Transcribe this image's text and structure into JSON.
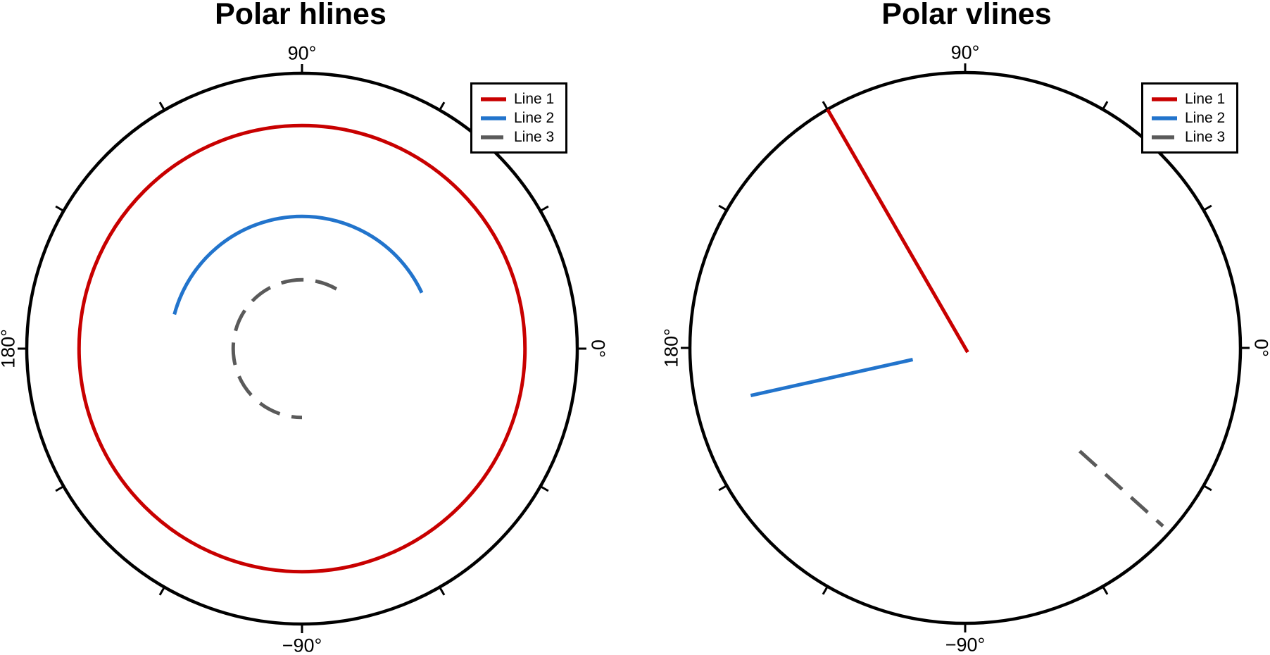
{
  "figure": {
    "background_color": "#ffffff",
    "text_color": "#000000",
    "axis_color": "#000000"
  },
  "chart_data": [
    {
      "type": "line",
      "projection": "polar",
      "title": "Polar hlines",
      "grid": false,
      "legend_position": "top-right",
      "legend_entries": [
        "Line 1",
        "Line 2",
        "Line 3"
      ],
      "theta_axis": {
        "tick_interval_deg": 30,
        "labeled_ticks_deg": [
          0,
          90,
          180,
          -90
        ],
        "tick_labels": [
          "0°",
          "90°",
          "180°",
          "−90°"
        ]
      },
      "r_axis": {
        "range_frac": [
          0,
          1
        ]
      },
      "series": [
        {
          "name": "Line 1",
          "kind": "hline",
          "color": "#c80000",
          "linestyle": "solid",
          "r_frac": 0.81,
          "theta_start_deg": 0,
          "theta_end_deg": 360
        },
        {
          "name": "Line 2",
          "kind": "hline",
          "color": "#2274cc",
          "linestyle": "solid",
          "r_frac": 0.48,
          "theta_start_deg": 25,
          "theta_end_deg": 165
        },
        {
          "name": "Line 3",
          "kind": "hline",
          "color": "#5a5a5a",
          "linestyle": "dash",
          "r_frac": 0.25,
          "theta_start_deg": 60,
          "theta_end_deg": 270
        }
      ]
    },
    {
      "type": "line",
      "projection": "polar",
      "title": "Polar vlines",
      "grid": false,
      "legend_position": "top-right",
      "legend_entries": [
        "Line 1",
        "Line 2",
        "Line 3"
      ],
      "theta_axis": {
        "tick_interval_deg": 30,
        "labeled_ticks_deg": [
          0,
          90,
          180,
          -90
        ],
        "tick_labels": [
          "0°",
          "90°",
          "180°",
          "−90°"
        ]
      },
      "r_axis": {
        "range_frac": [
          0,
          1
        ]
      },
      "series": [
        {
          "name": "Line 1",
          "kind": "vline",
          "color": "#c80000",
          "linestyle": "solid",
          "theta_deg": 120,
          "r_start_frac": -0.018,
          "r_end_frac": 1.0
        },
        {
          "name": "Line 2",
          "kind": "vline",
          "color": "#2274cc",
          "linestyle": "solid",
          "theta_deg": 192.5,
          "r_start_frac": 0.195,
          "r_end_frac": 0.798
        },
        {
          "name": "Line 3",
          "kind": "vline",
          "color": "#5a5a5a",
          "linestyle": "dash",
          "theta_deg": -42,
          "r_start_frac": 0.56,
          "r_end_frac": 0.967
        }
      ]
    }
  ]
}
